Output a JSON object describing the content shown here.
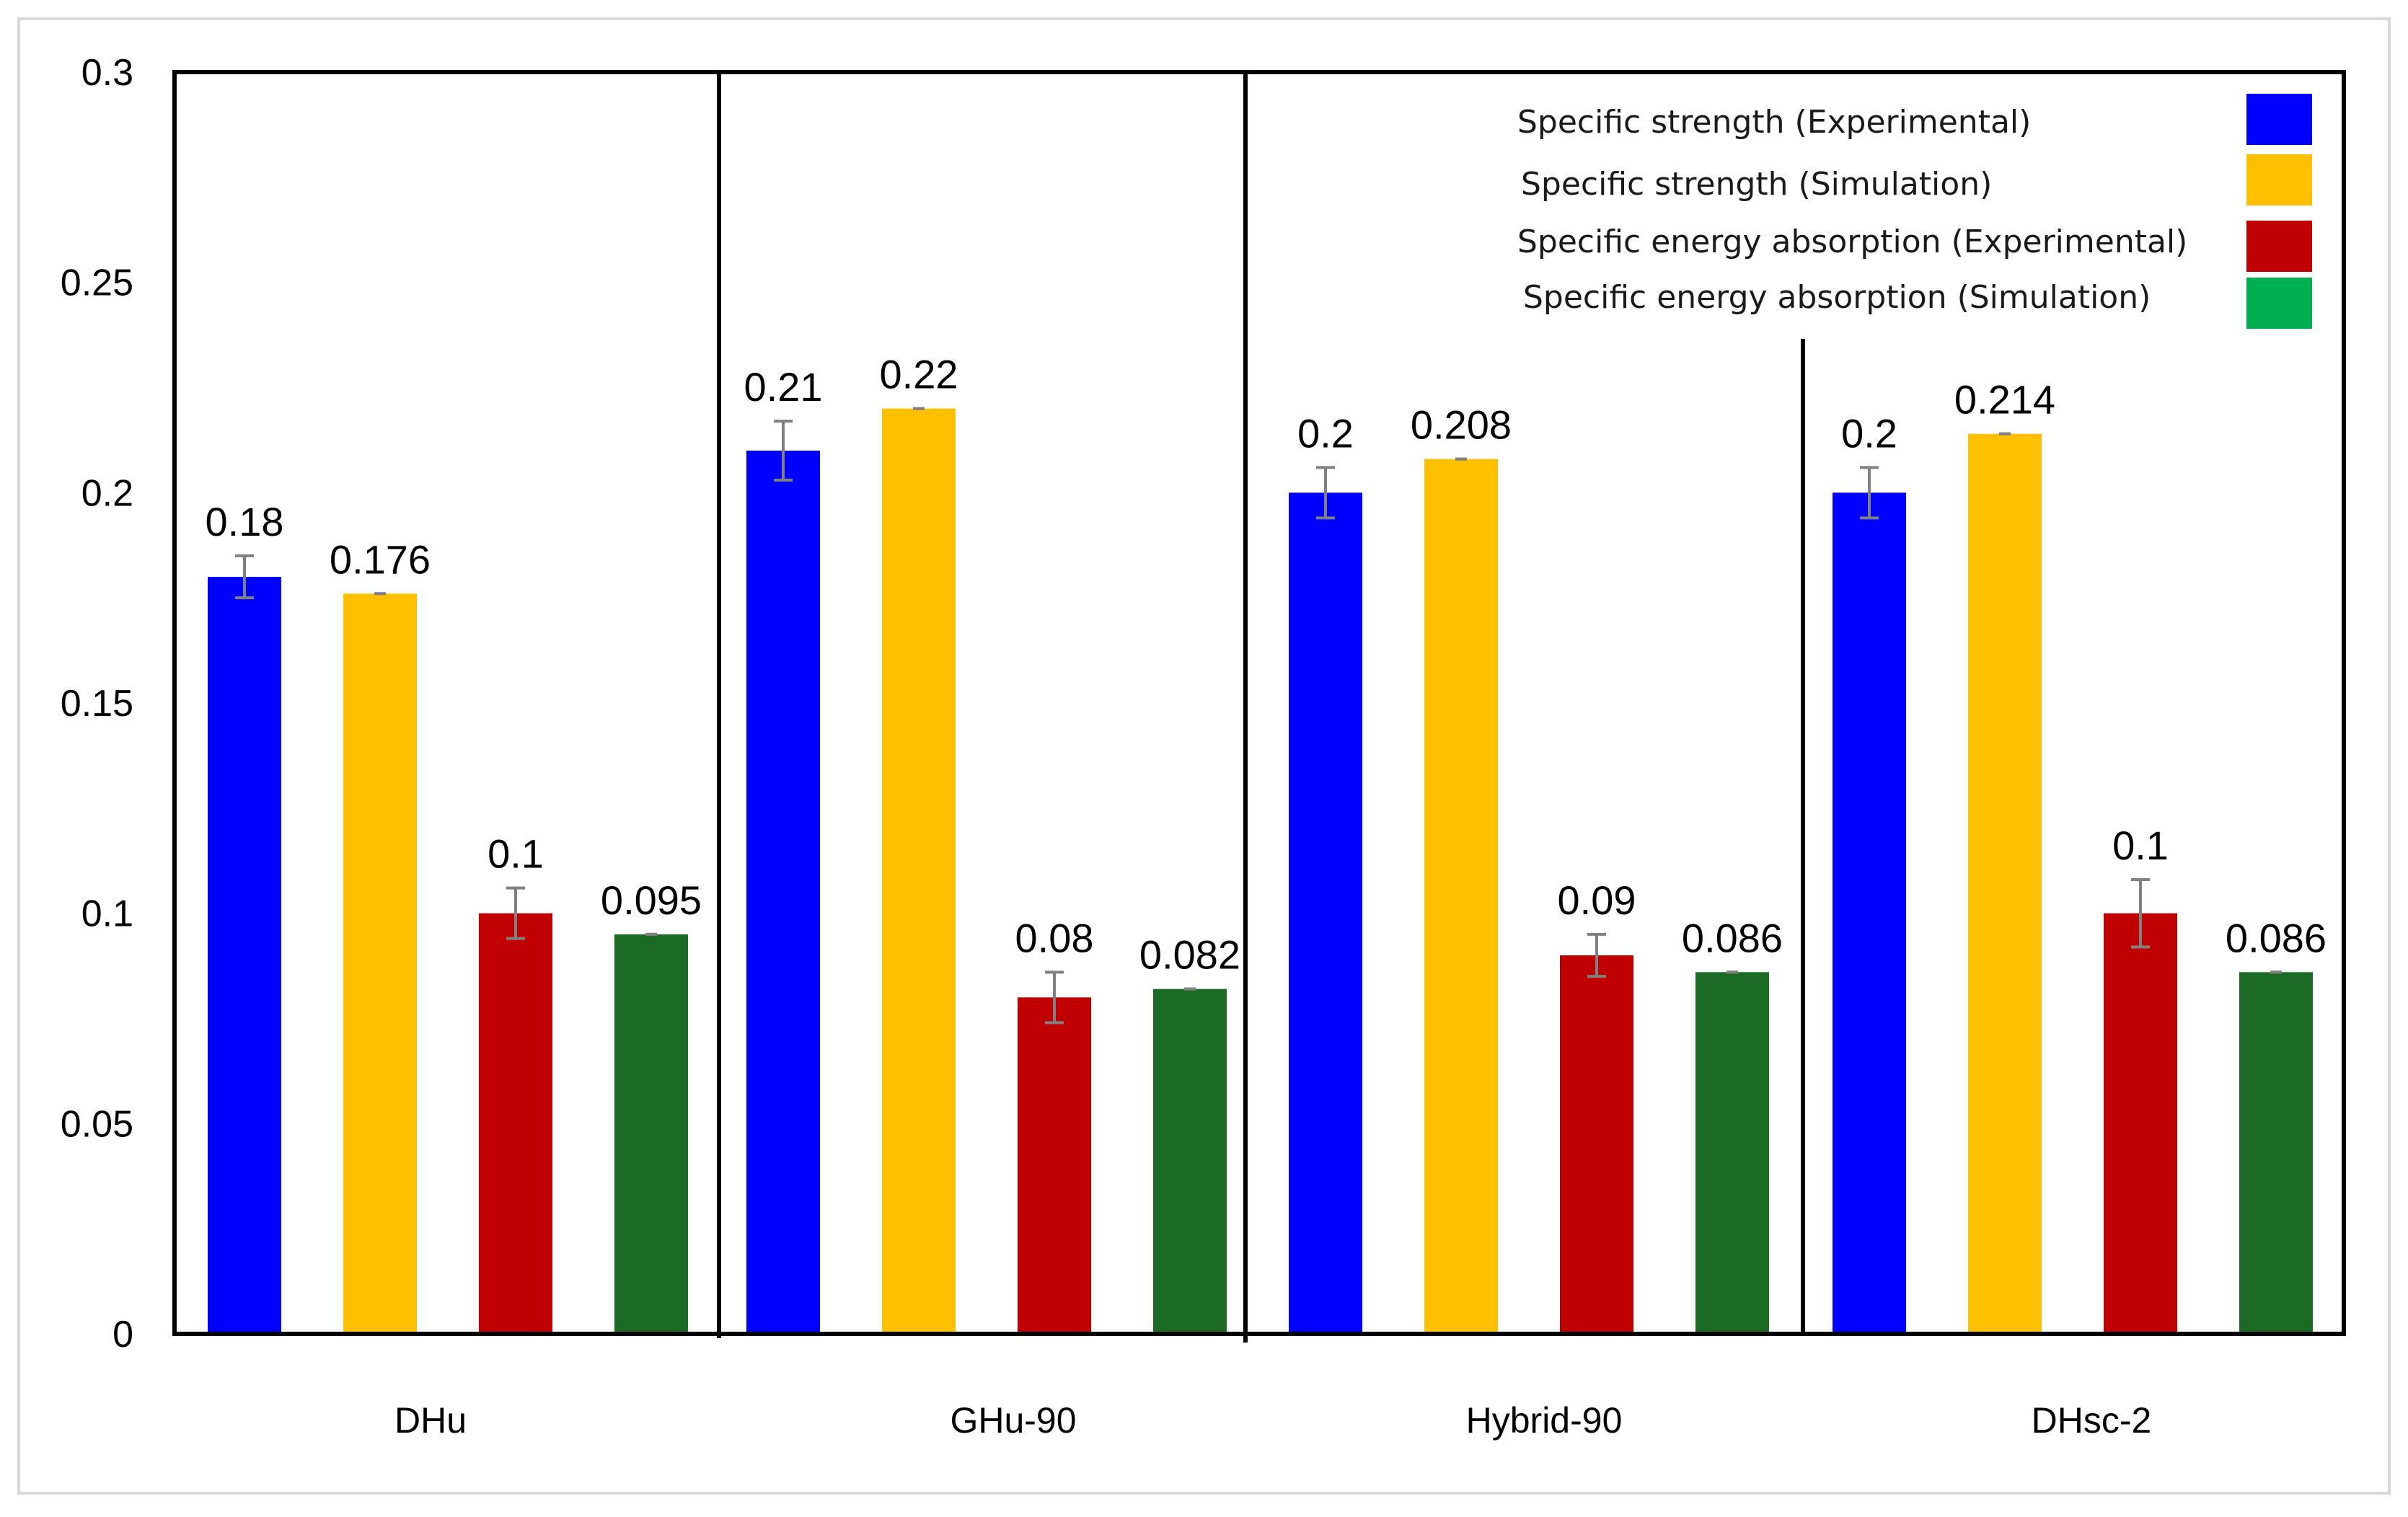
{
  "chart_data": {
    "type": "bar",
    "title": "",
    "xlabel": "",
    "ylabel": "",
    "ylim": [
      0,
      0.3
    ],
    "y_ticks": [
      "0",
      "0.05",
      "0.1",
      "0.15",
      "0.2",
      "0.25",
      "0.3"
    ],
    "grid": false,
    "legend_position": "top-right",
    "categories": [
      "DHu",
      "GHu-90",
      "Hybrid-90",
      "DHsc-2"
    ],
    "series": [
      {
        "name": "Specific strength (Experimental)",
        "color": "#0000FF",
        "values": [
          0.18,
          0.21,
          0.2,
          0.2
        ],
        "labels": [
          "0.18",
          "0.21",
          "0.2",
          "0.2"
        ],
        "error": [
          0.005,
          0.007,
          0.006,
          0.006
        ]
      },
      {
        "name": "Specific strength (Simulation)",
        "color": "#FFC000",
        "values": [
          0.176,
          0.22,
          0.208,
          0.214
        ],
        "labels": [
          "0.176",
          "0.22",
          "0.208",
          "0.214"
        ],
        "error": [
          0,
          0,
          0,
          0
        ]
      },
      {
        "name": "Specific energy absorption (Experimental)",
        "color": "#C00000",
        "values": [
          0.1,
          0.08,
          0.09,
          0.1
        ],
        "labels": [
          "0.1",
          "0.08",
          "0.09",
          "0.1"
        ],
        "error": [
          0.006,
          0.006,
          0.005,
          0.008
        ]
      },
      {
        "name": "Specific energy absorption (Simulation)",
        "color": "#1B6B24",
        "values": [
          0.095,
          0.082,
          0.086,
          0.086
        ],
        "labels": [
          "0.095",
          "0.082",
          "0.086",
          "0.086"
        ],
        "error": [
          0,
          0,
          0,
          0
        ]
      }
    ],
    "legend_swatch_colors": [
      "#0000FF",
      "#FFC000",
      "#C00000",
      "#00B050"
    ]
  }
}
